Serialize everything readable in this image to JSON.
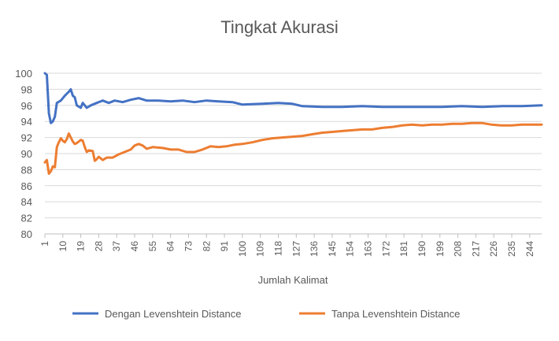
{
  "chart_data": {
    "type": "line",
    "title": "Tingkat Akurasi",
    "xlabel": "Jumlah Kalimat",
    "ylabel": "",
    "ylim": [
      80,
      100
    ],
    "yticks": [
      80,
      82,
      84,
      86,
      88,
      90,
      92,
      94,
      96,
      98,
      100
    ],
    "xlim": [
      1,
      250
    ],
    "xticks": [
      1,
      10,
      19,
      28,
      37,
      46,
      55,
      64,
      73,
      82,
      91,
      100,
      109,
      118,
      127,
      136,
      145,
      154,
      163,
      172,
      181,
      190,
      199,
      208,
      217,
      226,
      235,
      244
    ],
    "grid": "horizontal",
    "legend_position": "bottom",
    "colors": {
      "series1": "#4472C4",
      "series2": "#ED7D31",
      "grid": "#d9d9d9",
      "axis": "#bfbfbf",
      "text": "#595959"
    },
    "series": [
      {
        "name": "Dengan Levenshtein Distance",
        "color": "#4472C4",
        "points": [
          [
            1,
            100
          ],
          [
            2,
            99.8
          ],
          [
            3,
            95
          ],
          [
            4,
            93.8
          ],
          [
            5,
            94
          ],
          [
            6,
            94.6
          ],
          [
            7,
            96.3
          ],
          [
            9,
            96.6
          ],
          [
            11,
            97.2
          ],
          [
            13,
            97.7
          ],
          [
            14,
            98
          ],
          [
            15,
            97.2
          ],
          [
            16,
            97
          ],
          [
            17,
            96
          ],
          [
            19,
            95.7
          ],
          [
            20,
            96.3
          ],
          [
            22,
            95.7
          ],
          [
            24,
            96
          ],
          [
            27,
            96.3
          ],
          [
            30,
            96.6
          ],
          [
            33,
            96.3
          ],
          [
            36,
            96.6
          ],
          [
            40,
            96.4
          ],
          [
            44,
            96.7
          ],
          [
            48,
            96.9
          ],
          [
            52,
            96.6
          ],
          [
            58,
            96.6
          ],
          [
            64,
            96.5
          ],
          [
            70,
            96.6
          ],
          [
            76,
            96.4
          ],
          [
            82,
            96.6
          ],
          [
            88,
            96.5
          ],
          [
            95,
            96.4
          ],
          [
            100,
            96.1
          ],
          [
            110,
            96.2
          ],
          [
            118,
            96.3
          ],
          [
            125,
            96.2
          ],
          [
            130,
            95.9
          ],
          [
            140,
            95.8
          ],
          [
            150,
            95.8
          ],
          [
            160,
            95.9
          ],
          [
            170,
            95.8
          ],
          [
            180,
            95.8
          ],
          [
            190,
            95.8
          ],
          [
            200,
            95.8
          ],
          [
            210,
            95.9
          ],
          [
            220,
            95.8
          ],
          [
            230,
            95.9
          ],
          [
            240,
            95.9
          ],
          [
            250,
            96
          ]
        ]
      },
      {
        "name": "Tanpa Levenshtein Distance",
        "color": "#ED7D31",
        "points": [
          [
            1,
            88.9
          ],
          [
            2,
            89.2
          ],
          [
            3,
            87.5
          ],
          [
            4,
            87.8
          ],
          [
            5,
            88.4
          ],
          [
            6,
            88.3
          ],
          [
            7,
            90.8
          ],
          [
            8,
            91.4
          ],
          [
            9,
            91.9
          ],
          [
            10,
            91.6
          ],
          [
            11,
            91.4
          ],
          [
            12,
            91.8
          ],
          [
            13,
            92.5
          ],
          [
            14,
            92
          ],
          [
            15,
            91.5
          ],
          [
            16,
            91.2
          ],
          [
            17,
            91.3
          ],
          [
            18,
            91.5
          ],
          [
            19,
            91.7
          ],
          [
            20,
            91.6
          ],
          [
            21,
            90.8
          ],
          [
            22,
            90.2
          ],
          [
            23,
            90.4
          ],
          [
            25,
            90.3
          ],
          [
            26,
            89.1
          ],
          [
            27,
            89.3
          ],
          [
            28,
            89.6
          ],
          [
            30,
            89.2
          ],
          [
            32,
            89.5
          ],
          [
            35,
            89.5
          ],
          [
            38,
            89.9
          ],
          [
            40,
            90.1
          ],
          [
            44,
            90.5
          ],
          [
            46,
            91
          ],
          [
            48,
            91.2
          ],
          [
            50,
            91
          ],
          [
            52,
            90.6
          ],
          [
            55,
            90.8
          ],
          [
            60,
            90.7
          ],
          [
            64,
            90.5
          ],
          [
            68,
            90.5
          ],
          [
            72,
            90.2
          ],
          [
            76,
            90.2
          ],
          [
            80,
            90.5
          ],
          [
            84,
            90.9
          ],
          [
            88,
            90.8
          ],
          [
            92,
            90.9
          ],
          [
            96,
            91.1
          ],
          [
            100,
            91.2
          ],
          [
            105,
            91.4
          ],
          [
            110,
            91.7
          ],
          [
            115,
            91.9
          ],
          [
            120,
            92
          ],
          [
            125,
            92.1
          ],
          [
            130,
            92.2
          ],
          [
            135,
            92.4
          ],
          [
            140,
            92.6
          ],
          [
            145,
            92.7
          ],
          [
            150,
            92.8
          ],
          [
            155,
            92.9
          ],
          [
            160,
            93
          ],
          [
            165,
            93
          ],
          [
            170,
            93.2
          ],
          [
            175,
            93.3
          ],
          [
            180,
            93.5
          ],
          [
            185,
            93.6
          ],
          [
            190,
            93.5
          ],
          [
            195,
            93.6
          ],
          [
            200,
            93.6
          ],
          [
            205,
            93.7
          ],
          [
            210,
            93.7
          ],
          [
            215,
            93.8
          ],
          [
            220,
            93.8
          ],
          [
            225,
            93.6
          ],
          [
            230,
            93.5
          ],
          [
            235,
            93.5
          ],
          [
            240,
            93.6
          ],
          [
            245,
            93.6
          ],
          [
            250,
            93.6
          ]
        ]
      }
    ]
  }
}
